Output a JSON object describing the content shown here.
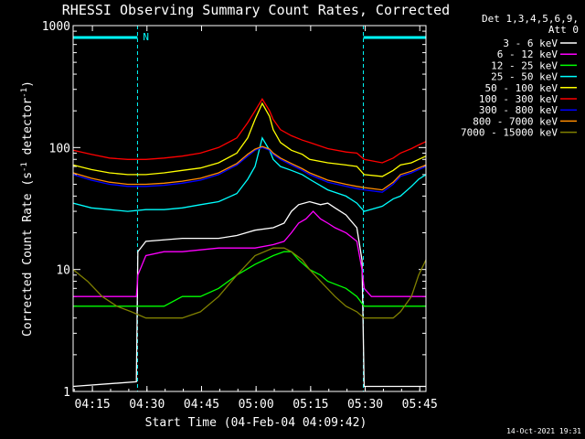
{
  "chart_data": {
    "type": "line",
    "title": "RHESSI Observing Summary Count Rates, Corrected",
    "xlabel": "Start Time (04-Feb-04 04:09:42)",
    "ylabel": "Corrected Count Rate (s",
    "ylabel_sup1": "-1",
    "ylabel_mid": " detector",
    "ylabel_sup2": "-1",
    "ylabel_end": ")",
    "yscale": "log",
    "ylim": [
      1,
      1000
    ],
    "xlim_minutes": [
      0,
      97
    ],
    "x_tick_labels": [
      "04:15",
      "04:30",
      "04:45",
      "05:00",
      "05:15",
      "05:30",
      "05:45"
    ],
    "x_tick_minutes": [
      5.3,
      20.3,
      35.3,
      50.3,
      65.3,
      80.3,
      95.3
    ],
    "y_tick_labels": [
      "1",
      "10",
      "100",
      "1000"
    ],
    "y_tick_values": [
      1,
      10,
      100,
      1000
    ],
    "timestamp": "14-Oct-2021 19:31",
    "legend": {
      "header_line1": "Det 1,3,4,5,6,9,",
      "header_line2": "Att 0",
      "position": "right"
    },
    "night_flag_label": "N",
    "night_intervals": [
      [
        0,
        17.7
      ],
      [
        79.8,
        97
      ]
    ],
    "series": [
      {
        "name": "3 - 6 keV",
        "color": "#ffffff",
        "x": [
          0,
          17.4,
          17.8,
          20,
          30,
          40,
          45,
          50,
          55,
          58,
          60,
          62,
          65,
          68,
          70,
          72,
          75,
          78,
          79.4,
          80,
          85,
          90,
          97
        ],
        "y": [
          1.1,
          1.2,
          14,
          17,
          18,
          18,
          19,
          21,
          22,
          24,
          30,
          34,
          36,
          34,
          35,
          32,
          28,
          22,
          12,
          1.1,
          1.1,
          1.1,
          1.1
        ]
      },
      {
        "name": "6 - 12 keV",
        "color": "#ff00ff",
        "x": [
          0,
          17.4,
          17.8,
          20,
          25,
          30,
          40,
          45,
          50,
          55,
          58,
          60,
          62,
          64,
          66,
          68,
          70,
          72,
          75,
          78,
          79.4,
          80,
          82,
          97
        ],
        "y": [
          6,
          6,
          9,
          13,
          14,
          14,
          15,
          15,
          15,
          16,
          17,
          20,
          24,
          26,
          30,
          26,
          24,
          22,
          20,
          17,
          10,
          7,
          6,
          6
        ]
      },
      {
        "name": "12 - 25 keV",
        "color": "#00ff00",
        "x": [
          0,
          5,
          10,
          15,
          20,
          25,
          30,
          35,
          40,
          45,
          50,
          55,
          58,
          60,
          62,
          65,
          68,
          70,
          75,
          78,
          80,
          85,
          90,
          95,
          97
        ],
        "y": [
          5,
          5,
          5,
          5,
          5,
          5,
          6,
          6,
          7,
          9,
          11,
          13,
          14,
          14,
          12,
          10,
          9,
          8,
          7,
          6,
          5,
          5,
          5,
          5,
          5
        ]
      },
      {
        "name": "25 - 50 keV",
        "color": "#00ffff",
        "x": [
          0,
          5,
          10,
          15,
          20,
          25,
          30,
          35,
          40,
          45,
          48,
          50,
          52,
          54,
          55,
          57,
          60,
          63,
          65,
          70,
          75,
          78,
          80,
          85,
          88,
          90,
          93,
          95,
          97
        ],
        "y": [
          35,
          32,
          31,
          30,
          31,
          31,
          32,
          34,
          36,
          42,
          55,
          70,
          120,
          95,
          80,
          70,
          65,
          60,
          55,
          45,
          40,
          35,
          30,
          33,
          38,
          40,
          48,
          55,
          60
        ]
      },
      {
        "name": "50 - 100 keV",
        "color": "#ffff00",
        "x": [
          0,
          5,
          10,
          15,
          20,
          25,
          30,
          35,
          40,
          45,
          48,
          50,
          52,
          54,
          55,
          57,
          60,
          63,
          65,
          70,
          75,
          78,
          80,
          85,
          88,
          90,
          93,
          95,
          97
        ],
        "y": [
          72,
          66,
          62,
          60,
          60,
          62,
          65,
          68,
          75,
          90,
          120,
          170,
          230,
          180,
          140,
          110,
          95,
          88,
          80,
          75,
          72,
          70,
          60,
          58,
          65,
          72,
          75,
          80,
          85
        ]
      },
      {
        "name": "100 - 300 keV",
        "color": "#ff0000",
        "x": [
          0,
          5,
          10,
          15,
          20,
          25,
          30,
          35,
          40,
          45,
          48,
          50,
          52,
          54,
          55,
          57,
          60,
          63,
          65,
          70,
          75,
          78,
          80,
          85,
          88,
          90,
          93,
          95,
          97
        ],
        "y": [
          95,
          88,
          82,
          80,
          80,
          82,
          85,
          90,
          100,
          120,
          160,
          200,
          250,
          200,
          170,
          140,
          125,
          115,
          110,
          98,
          92,
          90,
          80,
          75,
          82,
          90,
          98,
          105,
          112
        ]
      },
      {
        "name": "300 - 800 keV",
        "color": "#0000ff",
        "x": [
          0,
          5,
          10,
          15,
          20,
          25,
          30,
          35,
          40,
          45,
          48,
          50,
          52,
          54,
          55,
          57,
          60,
          63,
          65,
          70,
          75,
          78,
          80,
          85,
          88,
          90,
          93,
          95,
          97
        ],
        "y": [
          60,
          54,
          50,
          48,
          48,
          49,
          51,
          54,
          60,
          72,
          85,
          95,
          100,
          95,
          88,
          80,
          72,
          65,
          60,
          52,
          48,
          46,
          45,
          43,
          50,
          58,
          62,
          66,
          70
        ]
      },
      {
        "name": "800 - 7000 keV",
        "color": "#ff8c00",
        "x": [
          0,
          5,
          10,
          15,
          20,
          25,
          30,
          35,
          40,
          45,
          48,
          50,
          52,
          54,
          55,
          57,
          60,
          63,
          65,
          70,
          75,
          78,
          80,
          85,
          88,
          90,
          93,
          95,
          97
        ],
        "y": [
          62,
          56,
          52,
          50,
          50,
          51,
          53,
          56,
          62,
          74,
          88,
          97,
          102,
          97,
          90,
          82,
          74,
          67,
          62,
          54,
          50,
          48,
          47,
          45,
          52,
          60,
          64,
          68,
          72
        ]
      },
      {
        "name": "7000 - 15000 keV",
        "color": "#808000",
        "x": [
          0,
          4,
          8,
          12,
          16,
          20,
          25,
          30,
          35,
          40,
          45,
          50,
          55,
          58,
          60,
          63,
          65,
          68,
          72,
          75,
          78,
          80,
          85,
          88,
          90,
          93,
          95,
          97
        ],
        "y": [
          10,
          8,
          6,
          5,
          4.5,
          4,
          4,
          4,
          4.5,
          6,
          9,
          13,
          15,
          15,
          14,
          12,
          10,
          8,
          6,
          5,
          4.5,
          4,
          4,
          4,
          4.5,
          6,
          9,
          12
        ]
      }
    ]
  }
}
